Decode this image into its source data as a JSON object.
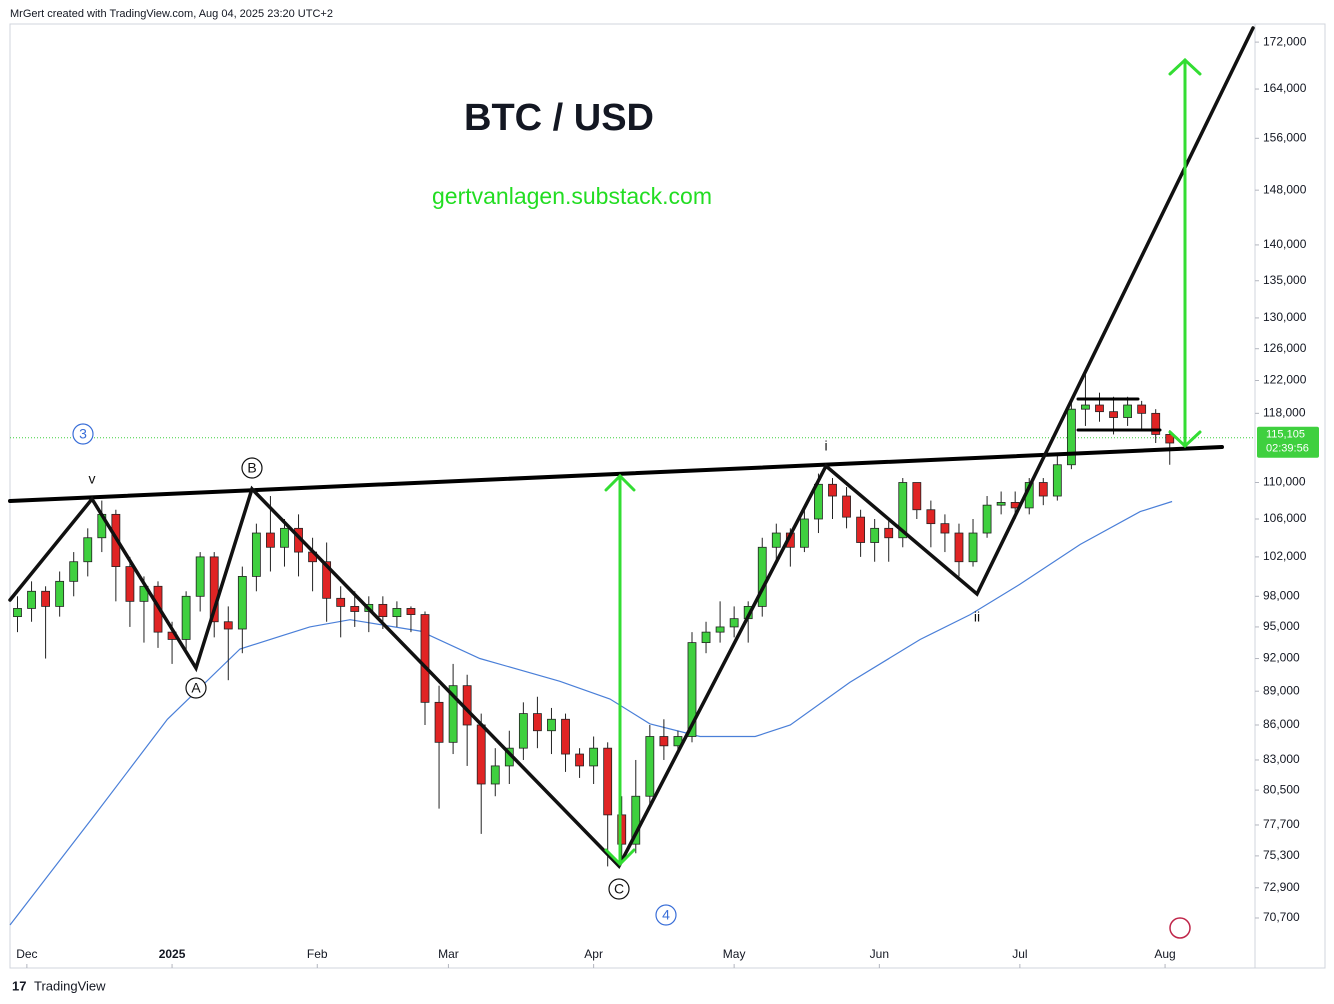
{
  "header": "MrGert created with TradingView.com, Aug 04, 2025 23:20 UTC+2",
  "footer": "TradingView",
  "chart_data": {
    "type": "candlestick",
    "title": "BTC / USD",
    "subtitle": "gertvanlagen.substack.com",
    "log_scale": true,
    "up_color": "#3fd03f",
    "down_color": "#e02424",
    "xlim": [
      -3.6,
      262.2
    ],
    "xticks": [
      {
        "value": 0,
        "label": "Dec"
      },
      {
        "value": 31,
        "label": "2025"
      },
      {
        "value": 62,
        "label": "Feb"
      },
      {
        "value": 90,
        "label": "Mar"
      },
      {
        "value": 121,
        "label": "Apr"
      },
      {
        "value": 151,
        "label": "May"
      },
      {
        "value": 182,
        "label": "Jun"
      },
      {
        "value": 212,
        "label": "Jul"
      },
      {
        "value": 243,
        "label": "Aug"
      }
    ],
    "ylim": [
      67200,
      177700
    ],
    "yticks": [
      {
        "value": 172000,
        "label": "172,000"
      },
      {
        "value": 164000,
        "label": "164,000"
      },
      {
        "value": 156000,
        "label": "156,000"
      },
      {
        "value": 148000,
        "label": "148,000"
      },
      {
        "value": 140000,
        "label": "140,000"
      },
      {
        "value": 135000,
        "label": "135,000"
      },
      {
        "value": 130000,
        "label": "130,000"
      },
      {
        "value": 126000,
        "label": "126,000"
      },
      {
        "value": 122000,
        "label": "122,000"
      },
      {
        "value": 118000,
        "label": "118,000"
      },
      {
        "value": 110000,
        "label": "110,000"
      },
      {
        "value": 106000,
        "label": "106,000"
      },
      {
        "value": 102000,
        "label": "102,000"
      },
      {
        "value": 98000,
        "label": "98,000"
      },
      {
        "value": 95000,
        "label": "95,000"
      },
      {
        "value": 92000,
        "label": "92,000"
      },
      {
        "value": 89000,
        "label": "89,000"
      },
      {
        "value": 86000,
        "label": "86,000"
      },
      {
        "value": 83000,
        "label": "83,000"
      },
      {
        "value": 80500,
        "label": "80,500"
      },
      {
        "value": 77700,
        "label": "77,700"
      },
      {
        "value": 75300,
        "label": "75,300"
      },
      {
        "value": 72900,
        "label": "72,900"
      },
      {
        "value": 70700,
        "label": "70,700"
      }
    ],
    "x": [
      -2,
      1,
      4,
      7,
      10,
      13,
      16,
      19,
      22,
      25,
      28,
      31,
      34,
      37,
      40,
      43,
      46,
      49,
      52,
      55,
      58,
      61,
      64,
      67,
      70,
      73,
      76,
      79,
      82,
      85,
      88,
      91,
      94,
      97,
      100,
      103,
      106,
      109,
      112,
      115,
      118,
      121,
      124,
      127,
      130,
      133,
      136,
      139,
      142,
      145,
      148,
      151,
      154,
      157,
      160,
      163,
      166,
      169,
      172,
      175,
      178,
      181,
      184,
      187,
      190,
      193,
      196,
      199,
      202,
      205,
      208,
      211,
      214,
      217,
      220,
      223,
      226,
      229,
      232,
      235,
      238,
      241,
      244
    ],
    "open": [
      96000,
      96800,
      98500,
      97000,
      99500,
      101500,
      104000,
      106500,
      101000,
      97500,
      99000,
      94500,
      93800,
      98000,
      102000,
      95500,
      94800,
      100000,
      104500,
      103000,
      105000,
      102500,
      101500,
      97800,
      97000,
      96500,
      97200,
      96000,
      96800,
      96200,
      88000,
      84500,
      89500,
      86000,
      81000,
      82500,
      84000,
      87000,
      85500,
      86500,
      83500,
      82500,
      84000,
      78500,
      76200,
      80000,
      85000,
      84200,
      85000,
      93500,
      94500,
      95000,
      95800,
      97000,
      103000,
      104500,
      103000,
      106000,
      109800,
      108500,
      106200,
      103500,
      105000,
      104000,
      110000,
      107000,
      105500,
      104500,
      101500,
      104500,
      107500,
      107800,
      107200,
      110000,
      108500,
      112000,
      118500,
      119000,
      118200,
      117500,
      119000,
      118000,
      115500
    ],
    "high": [
      98000,
      99500,
      99000,
      100500,
      102500,
      105000,
      108000,
      107000,
      102000,
      100000,
      99500,
      95500,
      98500,
      102500,
      102500,
      97000,
      101000,
      105500,
      108500,
      106000,
      106500,
      104000,
      103500,
      99000,
      98500,
      98000,
      98000,
      97500,
      97000,
      96500,
      89500,
      91500,
      90500,
      87000,
      84000,
      85500,
      88000,
      88500,
      87500,
      87000,
      84000,
      85000,
      84500,
      80000,
      83000,
      86000,
      86500,
      85500,
      94500,
      95500,
      97500,
      97000,
      97500,
      104000,
      105500,
      105000,
      107000,
      111000,
      110500,
      109500,
      107000,
      106000,
      106000,
      110500,
      110000,
      108000,
      106500,
      105500,
      106000,
      108500,
      109000,
      109000,
      110500,
      110500,
      113000,
      119500,
      123000,
      120500,
      120000,
      120000,
      119500,
      118500,
      116000
    ],
    "low": [
      94500,
      95500,
      92000,
      96000,
      98000,
      100000,
      102500,
      97500,
      95000,
      93500,
      93000,
      91500,
      92800,
      96500,
      94000,
      90000,
      92500,
      98500,
      100500,
      101000,
      100000,
      98500,
      95500,
      94000,
      95000,
      94500,
      94800,
      95000,
      94500,
      86000,
      79000,
      83500,
      82500,
      77000,
      80000,
      81000,
      83000,
      84000,
      83500,
      82000,
      81500,
      81000,
      74500,
      74800,
      75500,
      79000,
      83000,
      83500,
      84500,
      92500,
      93500,
      94000,
      93500,
      96000,
      101500,
      101000,
      102500,
      104500,
      106000,
      105000,
      102000,
      101500,
      101500,
      103000,
      106000,
      103000,
      102500,
      100000,
      101000,
      104000,
      106500,
      106000,
      106500,
      107500,
      108000,
      111500,
      116500,
      117000,
      115500,
      116500,
      116000,
      114500,
      112000
    ],
    "close": [
      96800,
      98500,
      97000,
      99500,
      101500,
      104000,
      106500,
      101000,
      97500,
      99000,
      94500,
      93800,
      98000,
      102000,
      95500,
      94800,
      100000,
      104500,
      103000,
      105000,
      102500,
      101500,
      97800,
      97000,
      96500,
      97200,
      96000,
      96800,
      96200,
      88000,
      84500,
      89500,
      86000,
      81000,
      82500,
      84000,
      87000,
      85500,
      86500,
      83500,
      82500,
      84000,
      78500,
      76200,
      80000,
      85000,
      84200,
      85000,
      93500,
      94500,
      95000,
      95800,
      97000,
      103000,
      104500,
      103000,
      106000,
      109800,
      108500,
      106200,
      103500,
      105000,
      104000,
      110000,
      107000,
      105500,
      104500,
      101500,
      104500,
      107500,
      107800,
      107200,
      110000,
      108500,
      112000,
      118500,
      119000,
      118200,
      117500,
      119000,
      118000,
      115500,
      114500
    ],
    "moving_average": {
      "color": "#4a7fd8",
      "x": [
        -3.6,
        14.5,
        30,
        45.5,
        60.4,
        69,
        84,
        96.7,
        113.8,
        124.5,
        133,
        143.7,
        155.5,
        163,
        175.7,
        190.7,
        201.4,
        212,
        224.9,
        237.7,
        244.5
      ],
      "values": [
        70200,
        78500,
        86500,
        92900,
        95000,
        95700,
        94600,
        92000,
        89900,
        88300,
        86100,
        85000,
        85000,
        86000,
        89800,
        93800,
        96200,
        99200,
        103300,
        106800,
        107900
      ]
    },
    "last_price": {
      "value": 115105,
      "label": "115,105"
    },
    "countdown": "02:39:56",
    "annotations": [
      "v",
      "B",
      "A",
      "C",
      "i",
      "ii",
      "3",
      "4"
    ]
  }
}
